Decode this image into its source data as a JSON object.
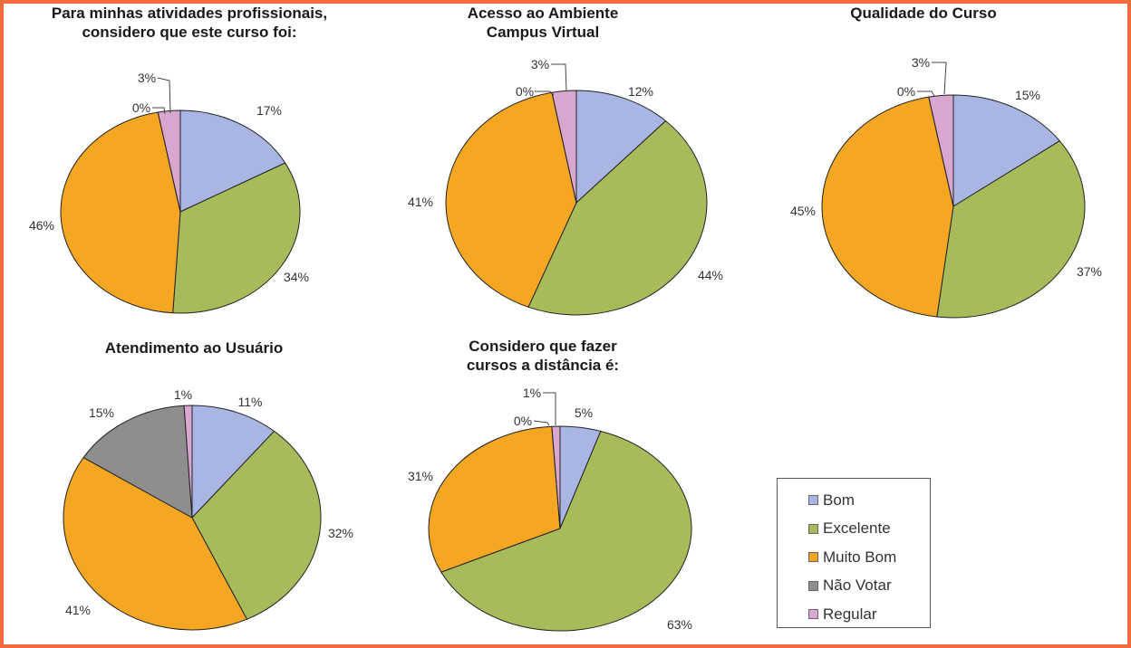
{
  "colors": {
    "Bom": "#a9b6e4",
    "Excelente": "#a7bb5a",
    "Muito Bom": "#f5a623",
    "Não Votar": "#8e8e8e",
    "Regular": "#d9a6d0"
  },
  "legend": {
    "items": [
      {
        "label": "Bom",
        "color": "#a9b6e4"
      },
      {
        "label": "Excelente",
        "color": "#a7bb5a"
      },
      {
        "label": "Muito Bom",
        "color": "#f5a623"
      },
      {
        "label": "Não Votar",
        "color": "#8e8e8e"
      },
      {
        "label": "Regular",
        "color": "#d9a6d0"
      }
    ]
  },
  "chart_data": [
    {
      "type": "pie",
      "title": "Para minhas atividades profissionais,\nconsidero que este curso foi:",
      "categories": [
        "Bom",
        "Excelente",
        "Muito Bom",
        "Não Votar",
        "Regular"
      ],
      "values": [
        17,
        34,
        46,
        0,
        3
      ],
      "labels": [
        "17%",
        "34%",
        "46%",
        "0%",
        "3%"
      ]
    },
    {
      "type": "pie",
      "title": "Acesso ao Ambiente\nCampus Virtual",
      "categories": [
        "Bom",
        "Excelente",
        "Muito Bom",
        "Não Votar",
        "Regular"
      ],
      "values": [
        12,
        44,
        41,
        0,
        3
      ],
      "labels": [
        "12%",
        "44%",
        "41%",
        "0%",
        "3%"
      ]
    },
    {
      "type": "pie",
      "title": "Qualidade do Curso",
      "categories": [
        "Bom",
        "Excelente",
        "Muito Bom",
        "Não Votar",
        "Regular"
      ],
      "values": [
        15,
        37,
        45,
        0,
        3
      ],
      "labels": [
        "15%",
        "37%",
        "45%",
        "0%",
        "3%"
      ]
    },
    {
      "type": "pie",
      "title": "Atendimento ao Usuário",
      "categories": [
        "Bom",
        "Excelente",
        "Muito Bom",
        "Não Votar",
        "Regular"
      ],
      "values": [
        11,
        32,
        41,
        15,
        1
      ],
      "labels": [
        "11%",
        "32%",
        "41%",
        "15%",
        "1%"
      ]
    },
    {
      "type": "pie",
      "title": "Considero que fazer\ncursos a distância é:",
      "categories": [
        "Bom",
        "Excelente",
        "Muito Bom",
        "Não Votar",
        "Regular"
      ],
      "values": [
        5,
        63,
        31,
        0,
        1
      ],
      "labels": [
        "5%",
        "63%",
        "31%",
        "0%",
        "1%"
      ]
    }
  ]
}
